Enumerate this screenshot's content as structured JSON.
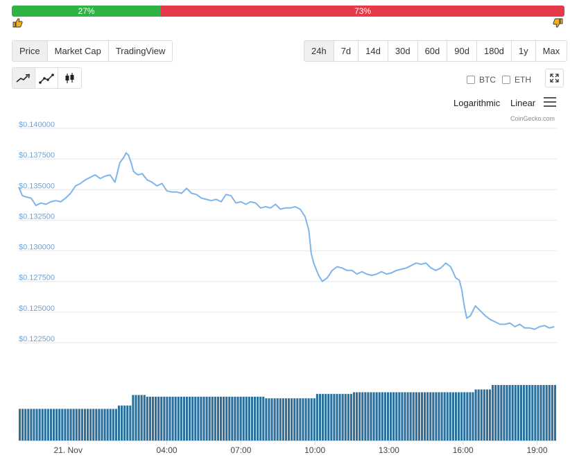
{
  "sentiment": {
    "up_label": "27%",
    "up_value": 27,
    "down_label": "73%",
    "down_value": 73,
    "up_color": "#2fb344",
    "down_color": "#e5394a",
    "up_icon": "thumbs-up-icon",
    "down_icon": "thumbs-down-icon"
  },
  "view_tabs": [
    {
      "label": "Price",
      "active": true
    },
    {
      "label": "Market Cap",
      "active": false
    },
    {
      "label": "TradingView",
      "active": false
    }
  ],
  "range_tabs": [
    {
      "label": "24h",
      "active": true
    },
    {
      "label": "7d",
      "active": false
    },
    {
      "label": "14d",
      "active": false
    },
    {
      "label": "30d",
      "active": false
    },
    {
      "label": "60d",
      "active": false
    },
    {
      "label": "90d",
      "active": false
    },
    {
      "label": "180d",
      "active": false
    },
    {
      "label": "1y",
      "active": false
    },
    {
      "label": "Max",
      "active": false
    }
  ],
  "chart_types": [
    {
      "icon": "line-chart-icon",
      "active": true
    },
    {
      "icon": "ohlc-line-icon",
      "active": false
    },
    {
      "icon": "candlestick-icon",
      "active": false
    }
  ],
  "compare": {
    "btc_label": "BTC",
    "eth_label": "ETH"
  },
  "scale": {
    "log_label": "Logarithmic",
    "linear_label": "Linear"
  },
  "credit": "CoinGecko.com",
  "chart_data": {
    "type": "line",
    "title": "",
    "xlabel": "",
    "ylabel": "",
    "line_color": "#7cb5ec",
    "volume_color": "#2a6f9b",
    "grid": true,
    "ylim": [
      0.1225,
      0.14
    ],
    "y_ticks": [
      "$0.140000",
      "$0.137500",
      "$0.135000",
      "$0.132500",
      "$0.130000",
      "$0.127500",
      "$0.125000",
      "$0.122500"
    ],
    "y_tick_values": [
      0.14,
      0.1375,
      0.135,
      0.1325,
      0.13,
      0.1275,
      0.125,
      0.1225
    ],
    "xlim": [
      -2.0,
      19.8
    ],
    "x_ticks": [
      "21. Nov",
      "04:00",
      "07:00",
      "10:00",
      "13:00",
      "16:00",
      "19:00"
    ],
    "x_tick_values": [
      0,
      4,
      7,
      10,
      13,
      16,
      19
    ],
    "price": {
      "x": [
        -2.0,
        -1.85,
        -1.7,
        -1.5,
        -1.3,
        -1.1,
        -0.9,
        -0.7,
        -0.5,
        -0.3,
        -0.1,
        0.1,
        0.3,
        0.5,
        0.7,
        0.9,
        1.1,
        1.3,
        1.5,
        1.7,
        1.9,
        2.1,
        2.25,
        2.35,
        2.45,
        2.55,
        2.65,
        2.75,
        2.85,
        3.0,
        3.2,
        3.4,
        3.6,
        3.8,
        4.0,
        4.2,
        4.4,
        4.6,
        4.8,
        5.0,
        5.2,
        5.4,
        5.6,
        5.8,
        6.0,
        6.2,
        6.4,
        6.6,
        6.8,
        7.0,
        7.2,
        7.4,
        7.6,
        7.8,
        8.0,
        8.2,
        8.4,
        8.6,
        8.8,
        9.0,
        9.2,
        9.4,
        9.6,
        9.75,
        9.85,
        9.95,
        10.05,
        10.15,
        10.3,
        10.5,
        10.7,
        10.9,
        11.1,
        11.3,
        11.5,
        11.7,
        11.9,
        12.1,
        12.3,
        12.5,
        12.7,
        12.9,
        13.1,
        13.3,
        13.5,
        13.7,
        13.9,
        14.1,
        14.3,
        14.5,
        14.7,
        14.9,
        15.1,
        15.3,
        15.5,
        15.7,
        15.85,
        15.95,
        16.05,
        16.15,
        16.3,
        16.5,
        16.7,
        16.9,
        17.1,
        17.3,
        17.5,
        17.7,
        17.9,
        18.1,
        18.3,
        18.5,
        18.7,
        18.9,
        19.1,
        19.3,
        19.5,
        19.7
      ],
      "y": [
        0.1352,
        0.1345,
        0.1344,
        0.1343,
        0.1337,
        0.1339,
        0.1338,
        0.134,
        0.1341,
        0.134,
        0.1343,
        0.1347,
        0.1353,
        0.1355,
        0.1358,
        0.136,
        0.1362,
        0.1359,
        0.1361,
        0.1362,
        0.1356,
        0.1372,
        0.1376,
        0.138,
        0.1378,
        0.1372,
        0.1365,
        0.1363,
        0.1362,
        0.1363,
        0.1358,
        0.1356,
        0.1353,
        0.1355,
        0.1349,
        0.1348,
        0.1348,
        0.1347,
        0.1351,
        0.1347,
        0.1346,
        0.1343,
        0.1342,
        0.1341,
        0.1342,
        0.134,
        0.1346,
        0.1345,
        0.1339,
        0.134,
        0.1338,
        0.134,
        0.1339,
        0.1335,
        0.1336,
        0.1335,
        0.1338,
        0.1334,
        0.1335,
        0.1335,
        0.1336,
        0.1334,
        0.1328,
        0.1317,
        0.1298,
        0.129,
        0.1285,
        0.128,
        0.1275,
        0.1278,
        0.1284,
        0.1287,
        0.1286,
        0.1284,
        0.1284,
        0.1281,
        0.1283,
        0.1281,
        0.128,
        0.1281,
        0.1283,
        0.1281,
        0.1282,
        0.1284,
        0.1285,
        0.1286,
        0.1288,
        0.129,
        0.1289,
        0.129,
        0.1286,
        0.1284,
        0.1286,
        0.129,
        0.1287,
        0.1278,
        0.1276,
        0.1268,
        0.1255,
        0.1245,
        0.1247,
        0.1255,
        0.1251,
        0.1247,
        0.1244,
        0.1242,
        0.124,
        0.124,
        0.1241,
        0.1238,
        0.124,
        0.1237,
        0.1237,
        0.1236,
        0.1238,
        0.1239,
        0.1237,
        0.1238
      ]
    },
    "volume_levels": [
      {
        "from": -2.0,
        "to": 2.0,
        "level": 0.57
      },
      {
        "from": 2.0,
        "to": 2.6,
        "level": 0.63
      },
      {
        "from": 2.6,
        "to": 3.2,
        "level": 0.82
      },
      {
        "from": 3.2,
        "to": 8.0,
        "level": 0.79
      },
      {
        "from": 8.0,
        "to": 10.0,
        "level": 0.76
      },
      {
        "from": 10.0,
        "to": 11.5,
        "level": 0.84
      },
      {
        "from": 11.5,
        "to": 16.5,
        "level": 0.87
      },
      {
        "from": 16.5,
        "to": 17.2,
        "level": 0.92
      },
      {
        "from": 17.2,
        "to": 19.8,
        "level": 1.0
      }
    ]
  }
}
